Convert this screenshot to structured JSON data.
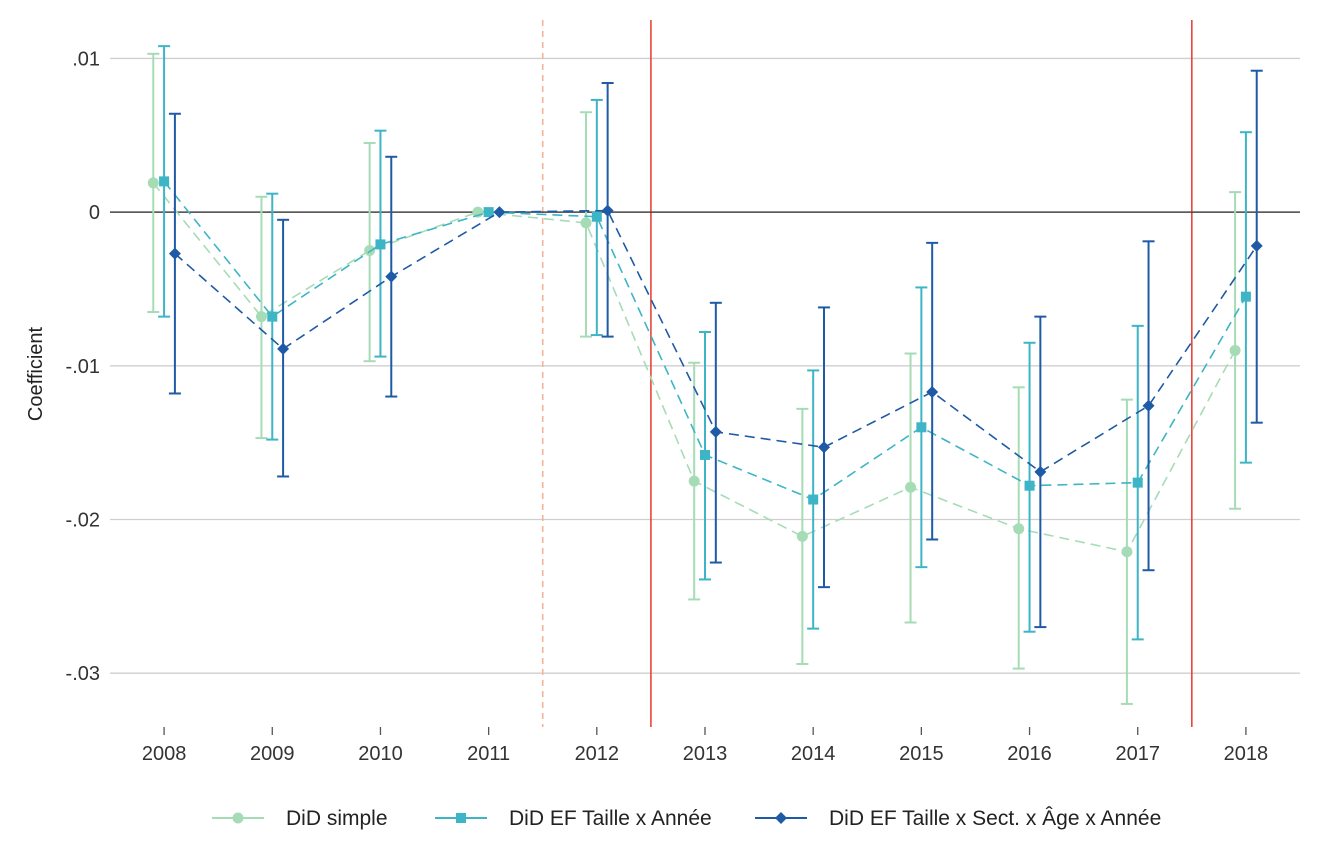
{
  "chart_data": {
    "type": "line",
    "title": "",
    "xlabel": "",
    "ylabel": "Coefficient",
    "ylim": [
      -0.0335,
      0.0125
    ],
    "grid": true,
    "legend_position": "bottom",
    "x": [
      2008,
      2009,
      2010,
      2011,
      2012,
      2013,
      2014,
      2015,
      2016,
      2017,
      2018
    ],
    "x_tick_labels": [
      "2008",
      "2009",
      "2010",
      "2011",
      "2012",
      "2013",
      "2014",
      "2015",
      "2016",
      "2017",
      "2018"
    ],
    "y_ticks": [
      0.01,
      0,
      -0.01,
      -0.02,
      -0.03
    ],
    "y_tick_labels": [
      ".01",
      "0",
      "-.01",
      "-.02",
      "-.03"
    ],
    "reference_lines": [
      {
        "x": 2011.5,
        "style": "dashed",
        "color": "#f5b39a"
      },
      {
        "x": 2012.5,
        "style": "solid",
        "color": "#e8463a"
      },
      {
        "x": 2017.5,
        "style": "solid",
        "color": "#e8463a"
      }
    ],
    "zero_line": {
      "y": 0,
      "color": "#444444"
    },
    "series": [
      {
        "name": "DiD simple",
        "color": "#a6dcb5",
        "marker": "circle",
        "offset": -0.1,
        "values": [
          0.0019,
          -0.0068,
          -0.0025,
          0.0,
          -0.0007,
          -0.0175,
          -0.0211,
          -0.0179,
          -0.0206,
          -0.0221,
          -0.009
        ],
        "ci_low": [
          -0.0065,
          -0.0147,
          -0.0097,
          0.0,
          -0.0081,
          -0.0252,
          -0.0294,
          -0.0267,
          -0.0297,
          -0.032,
          -0.0193
        ],
        "ci_high": [
          0.0103,
          0.001,
          0.0045,
          0.0,
          0.0065,
          -0.0098,
          -0.0128,
          -0.0092,
          -0.0114,
          -0.0122,
          0.0013
        ]
      },
      {
        "name": "DiD EF Taille x Année",
        "color": "#3db5c6",
        "marker": "square",
        "offset": 0.0,
        "values": [
          0.002,
          -0.0068,
          -0.0021,
          0.0,
          -0.0003,
          -0.0158,
          -0.0187,
          -0.014,
          -0.0178,
          -0.0176,
          -0.0055
        ],
        "ci_low": [
          -0.0068,
          -0.0148,
          -0.0094,
          0.0,
          -0.008,
          -0.0239,
          -0.0271,
          -0.0231,
          -0.0273,
          -0.0278,
          -0.0163
        ],
        "ci_high": [
          0.0108,
          0.0012,
          0.0053,
          0.0,
          0.0073,
          -0.0078,
          -0.0103,
          -0.0049,
          -0.0085,
          -0.0074,
          0.0052
        ]
      },
      {
        "name": "DiD EF Taille x Sect. x Âge x Année",
        "color": "#1f5aa6",
        "marker": "diamond",
        "offset": 0.1,
        "values": [
          -0.0027,
          -0.0089,
          -0.0042,
          0.0,
          0.0001,
          -0.0143,
          -0.0153,
          -0.0117,
          -0.0169,
          -0.0126,
          -0.0022
        ],
        "ci_low": [
          -0.0118,
          -0.0172,
          -0.012,
          0.0,
          -0.0081,
          -0.0228,
          -0.0244,
          -0.0213,
          -0.027,
          -0.0233,
          -0.0137
        ],
        "ci_high": [
          0.0064,
          -0.0005,
          0.0036,
          0.0,
          0.0084,
          -0.0059,
          -0.0062,
          -0.002,
          -0.0068,
          -0.0019,
          0.0092
        ]
      }
    ]
  }
}
